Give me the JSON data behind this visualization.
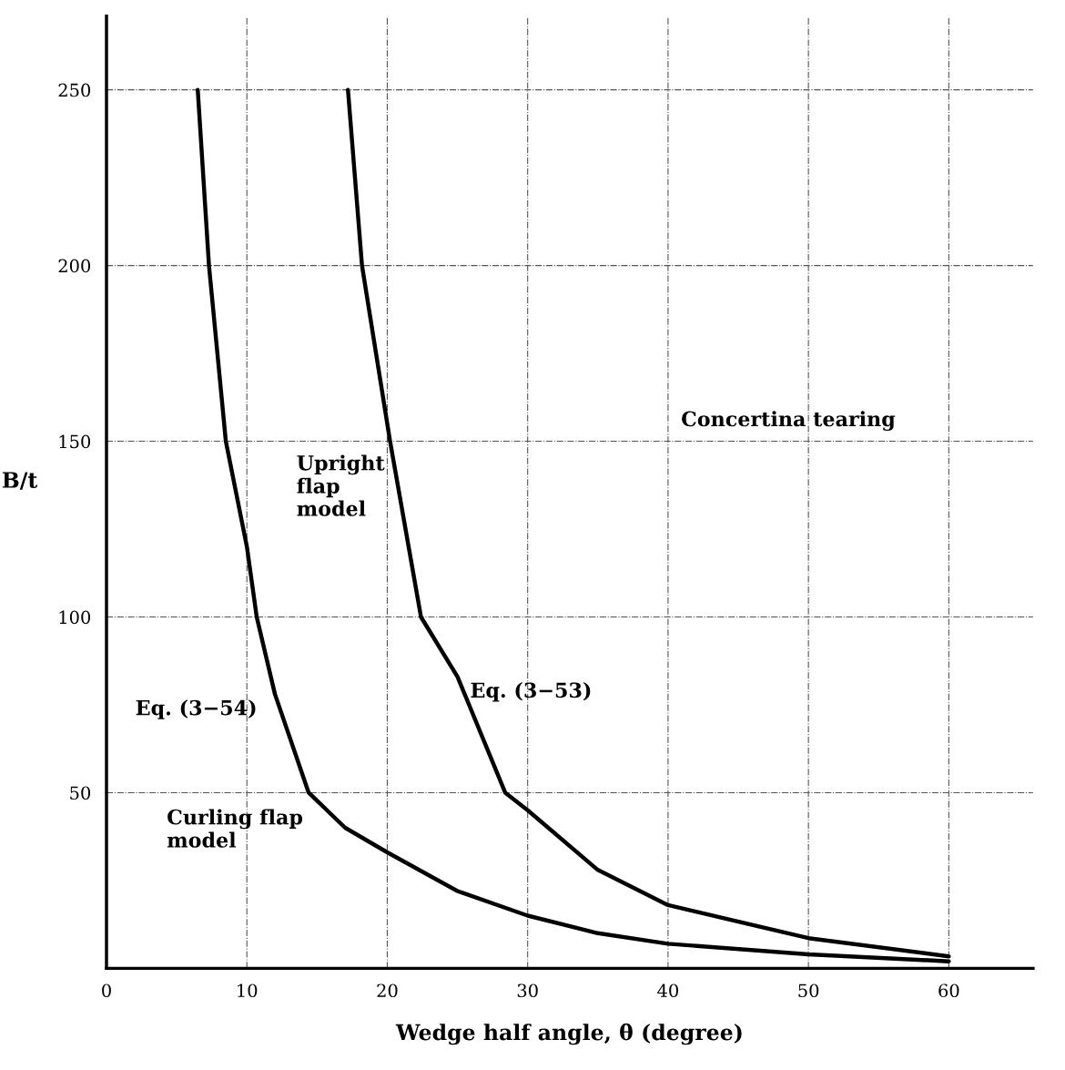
{
  "chart_data": {
    "type": "line",
    "xlabel": "Wedge half angle, θ (degree)",
    "ylabel": "B/t",
    "xlim": [
      0,
      66
    ],
    "ylim": [
      0,
      271
    ],
    "xticks": [
      0,
      10,
      20,
      30,
      40,
      50,
      60
    ],
    "yticks": [
      50,
      100,
      150,
      200,
      250
    ],
    "grid": true,
    "legend": false,
    "marker": "none",
    "line_style": "solid",
    "series": [
      {
        "name": "Eq. (3−54)",
        "color": "#000000",
        "x": [
          6.5,
          7.3,
          8.5,
          10,
          10.7,
          12,
          14.4,
          17,
          20,
          25,
          30,
          35,
          40,
          50,
          60
        ],
        "values": [
          250,
          200,
          150,
          120,
          100,
          78,
          50,
          40,
          33,
          22,
          15,
          10,
          7,
          4,
          2
        ]
      },
      {
        "name": "Eq. (3−53)",
        "color": "#000000",
        "x": [
          17.2,
          18.2,
          20.2,
          22.4,
          25,
          28.4,
          30,
          35,
          40,
          50,
          60
        ],
        "values": [
          250,
          200,
          150,
          100,
          83,
          50,
          45,
          28,
          18,
          8.6,
          3.4
        ]
      }
    ],
    "annotations": [
      "Concertina tearing",
      "Upright\nflap\nmodel",
      "Curling flap\nmodel"
    ]
  }
}
